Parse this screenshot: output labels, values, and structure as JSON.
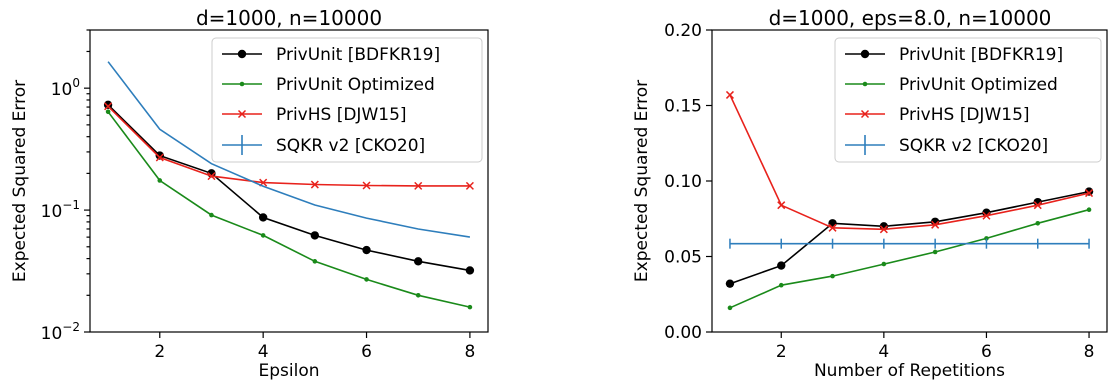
{
  "chart_data": [
    {
      "type": "line",
      "title": "d=1000, n=10000",
      "xlabel": "Epsilon",
      "ylabel": "Expected Squared Error",
      "yscale": "log",
      "xlim": [
        0.65,
        8.35
      ],
      "ylim": [
        0.01,
        3.0
      ],
      "xticks": [
        2,
        4,
        6,
        8
      ],
      "xtick_labels": [
        "2",
        "4",
        "6",
        "8"
      ],
      "yticks": [
        0.01,
        0.1,
        1
      ],
      "ytick_labels": [
        {
          "base": "10",
          "exp": "−2"
        },
        {
          "base": "10",
          "exp": "−1"
        },
        {
          "base": "10",
          "exp": "0"
        }
      ],
      "legend_position": "top-right",
      "x": [
        1,
        2,
        3,
        4,
        5,
        6,
        7,
        8
      ],
      "series": [
        {
          "name": "PrivUnit [BDFKR19]",
          "color": "#000000",
          "marker": "circle-large",
          "values": [
            0.73,
            0.28,
            0.2,
            0.087,
            0.062,
            0.047,
            0.038,
            0.032
          ]
        },
        {
          "name": "PrivUnit Optimized",
          "color": "#1a8a1a",
          "marker": "circle-small",
          "values": [
            0.64,
            0.175,
            0.091,
            0.062,
            0.038,
            0.027,
            0.02,
            0.016
          ]
        },
        {
          "name": "PrivHS [DJW15]",
          "color": "#e8221c",
          "marker": "x",
          "values": [
            0.71,
            0.27,
            0.19,
            0.168,
            0.162,
            0.159,
            0.158,
            0.158
          ]
        },
        {
          "name": "SQKR v2 [CKO20]",
          "color": "#2e7ebc",
          "marker": "none",
          "values": [
            1.65,
            0.46,
            0.24,
            0.157,
            0.11,
            0.086,
            0.07,
            0.06
          ]
        }
      ]
    },
    {
      "type": "line",
      "title": "d=1000, eps=8.0, n=10000",
      "xlabel": "Number of Repetitions",
      "ylabel": "Expected Squared Error",
      "yscale": "linear",
      "xlim": [
        0.65,
        8.35
      ],
      "ylim": [
        0.0,
        0.2
      ],
      "xticks": [
        2,
        4,
        6,
        8
      ],
      "xtick_labels": [
        "2",
        "4",
        "6",
        "8"
      ],
      "yticks": [
        0.0,
        0.05,
        0.1,
        0.15,
        0.2
      ],
      "ytick_labels": [
        "0.00",
        "0.05",
        "0.10",
        "0.15",
        "0.20"
      ],
      "legend_position": "top-right",
      "x": [
        1,
        2,
        3,
        4,
        5,
        6,
        7,
        8
      ],
      "series": [
        {
          "name": "PrivUnit [BDFKR19]",
          "color": "#000000",
          "marker": "circle-large",
          "values": [
            0.032,
            0.044,
            0.072,
            0.07,
            0.073,
            0.079,
            0.086,
            0.093
          ]
        },
        {
          "name": "PrivUnit Optimized",
          "color": "#1a8a1a",
          "marker": "circle-small",
          "values": [
            0.016,
            0.031,
            0.037,
            0.045,
            0.053,
            0.062,
            0.072,
            0.081
          ]
        },
        {
          "name": "PrivHS [DJW15]",
          "color": "#e8221c",
          "marker": "x",
          "values": [
            0.157,
            0.084,
            0.069,
            0.068,
            0.071,
            0.077,
            0.084,
            0.092
          ]
        },
        {
          "name": "SQKR v2 [CKO20]",
          "color": "#2e7ebc",
          "marker": "vline",
          "values": [
            0.0585,
            0.0585,
            0.0585,
            0.0585,
            0.0585,
            0.0585,
            0.0585,
            0.0585
          ]
        }
      ]
    }
  ]
}
